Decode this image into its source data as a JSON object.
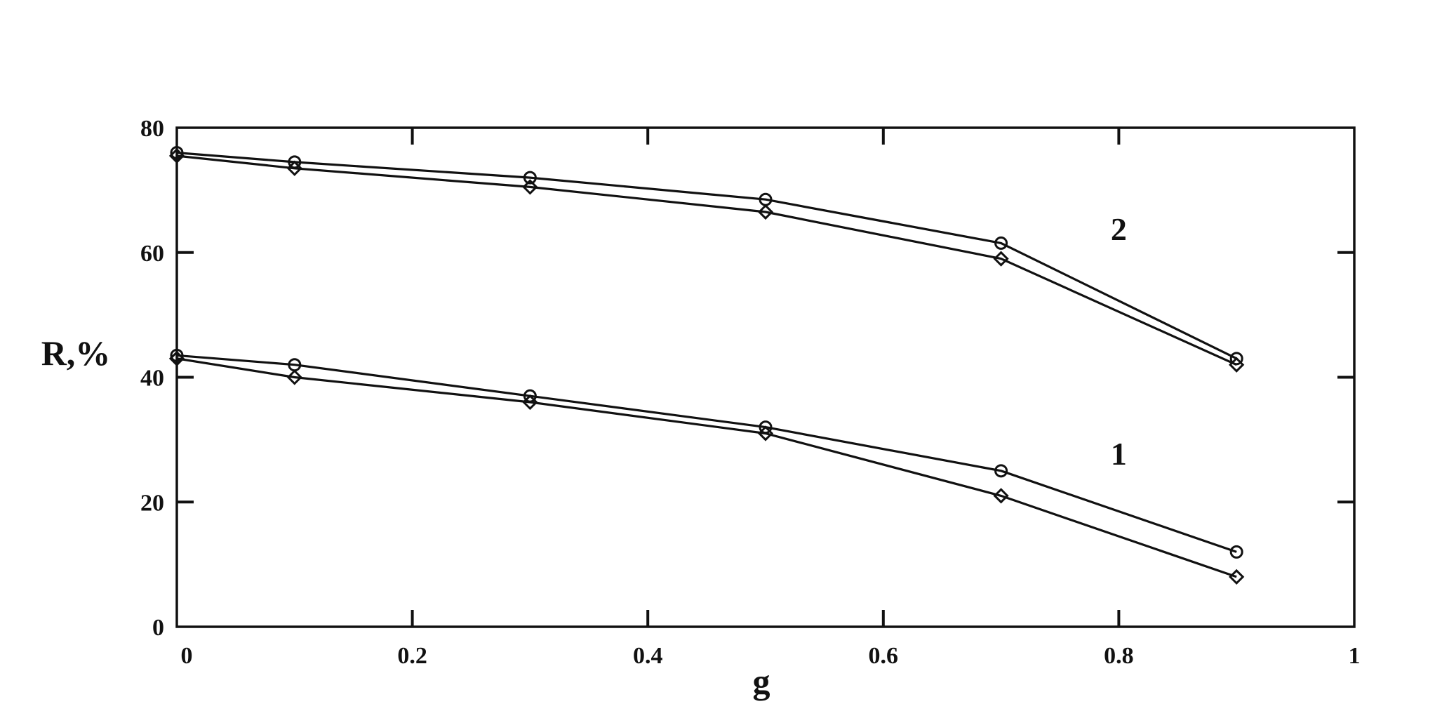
{
  "chart_data": {
    "type": "line",
    "title": "",
    "xlabel": "g",
    "ylabel": "R,%",
    "xlim": [
      0,
      1
    ],
    "ylim": [
      0,
      80
    ],
    "x_ticks": [
      {
        "value": 0,
        "label": "0"
      },
      {
        "value": 0.2,
        "label": "0.2"
      },
      {
        "value": 0.4,
        "label": "0.4"
      },
      {
        "value": 0.6,
        "label": "0.6"
      },
      {
        "value": 0.8,
        "label": "0.8"
      },
      {
        "value": 1,
        "label": "1"
      }
    ],
    "y_ticks": [
      {
        "value": 0,
        "label": "0"
      },
      {
        "value": 20,
        "label": "20"
      },
      {
        "value": 40,
        "label": "40"
      },
      {
        "value": 60,
        "label": "60"
      },
      {
        "value": 80,
        "label": "80"
      }
    ],
    "grid": false,
    "series": [
      {
        "group": "2",
        "marker": "circle",
        "x": [
          0,
          0.1,
          0.3,
          0.5,
          0.7,
          0.9
        ],
        "y": [
          76,
          74.5,
          72,
          68.5,
          61.5,
          43
        ]
      },
      {
        "group": "2",
        "marker": "diamond",
        "x": [
          0,
          0.1,
          0.3,
          0.5,
          0.7,
          0.9
        ],
        "y": [
          75.5,
          73.5,
          70.5,
          66.5,
          59,
          42
        ]
      },
      {
        "group": "1",
        "marker": "circle",
        "x": [
          0,
          0.1,
          0.3,
          0.5,
          0.7,
          0.9
        ],
        "y": [
          43.5,
          42,
          37,
          32,
          25,
          12
        ]
      },
      {
        "group": "1",
        "marker": "diamond",
        "x": [
          0,
          0.1,
          0.3,
          0.5,
          0.7,
          0.9
        ],
        "y": [
          43,
          40,
          36,
          31,
          21,
          8
        ]
      }
    ],
    "annotations": [
      {
        "text": "2",
        "x": 0.8,
        "y": 62
      },
      {
        "text": "1",
        "x": 0.8,
        "y": 26
      }
    ],
    "colors": {
      "ink": "#111111",
      "background": "#ffffff"
    }
  }
}
